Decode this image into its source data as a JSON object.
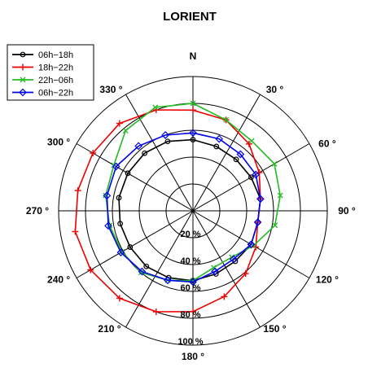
{
  "chart_data": {
    "type": "polar-line",
    "title": "LORIENT",
    "north_label": "N",
    "direction_labels": [
      "30 °",
      "60 °",
      "90 °",
      "120 °",
      "150 °",
      "180 °",
      "210 °",
      "240 °",
      "270 °",
      "300 °",
      "330 °"
    ],
    "direction_angles": [
      30,
      60,
      90,
      120,
      150,
      180,
      210,
      240,
      270,
      300,
      330
    ],
    "ring_values": [
      20,
      40,
      60,
      80,
      100
    ],
    "ring_labels": [
      "20 %",
      "40 %",
      "60 %",
      "80 %",
      "100 %"
    ],
    "radial_range": [
      0,
      100
    ],
    "angles": [
      0,
      20,
      40,
      60,
      80,
      100,
      120,
      140,
      160,
      180,
      200,
      220,
      240,
      260,
      280,
      300,
      320,
      340
    ],
    "legend_position": "top-left",
    "series": [
      {
        "name": "06h−18h",
        "color": "#000000",
        "marker": "circle",
        "values": [
          53,
          51,
          50,
          50,
          51,
          49,
          50,
          49,
          50,
          52,
          53,
          54,
          54,
          55,
          56,
          56,
          56,
          55
        ]
      },
      {
        "name": "18h−22h",
        "color": "#ee0000",
        "marker": "plus",
        "values": [
          75,
          72,
          65,
          57,
          51,
          49,
          54,
          61,
          68,
          75,
          80,
          85,
          88,
          89,
          87,
          86,
          85,
          80
        ]
      },
      {
        "name": "22h−06h",
        "color": "#22bb22",
        "marker": "x",
        "values": [
          80,
          72,
          68,
          70,
          66,
          62,
          52,
          45,
          45,
          52,
          55,
          60,
          61,
          63,
          66,
          68,
          78,
          82
        ]
      },
      {
        "name": "06h−22h",
        "color": "#0000ee",
        "marker": "diamond",
        "values": [
          58,
          57,
          55,
          54,
          51,
          49,
          50,
          47,
          48,
          53,
          55,
          59,
          62,
          64,
          65,
          66,
          63,
          60
        ]
      }
    ]
  }
}
